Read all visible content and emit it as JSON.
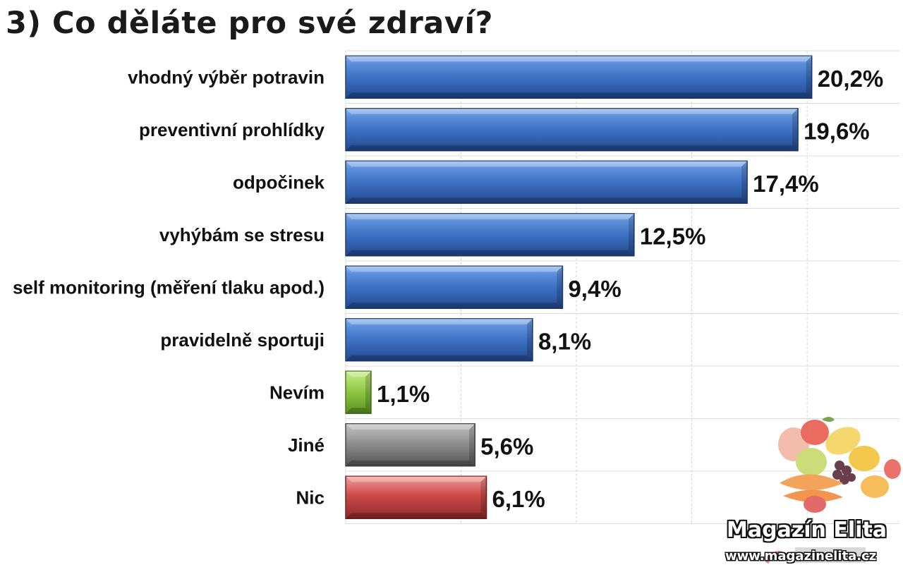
{
  "chart_data": {
    "type": "bar",
    "orientation": "horizontal",
    "title": "3) Co děláte pro své zdraví?",
    "categories": [
      "vhodný výběr potravin",
      "preventivní prohlídky",
      "odpočinek",
      "vyhýbám se stresu",
      "self monitoring (měření tlaku apod.)",
      "pravidelně sportuji",
      "Nevím",
      "Jiné",
      "Nic"
    ],
    "values": [
      20.2,
      19.6,
      17.4,
      12.5,
      9.4,
      8.1,
      1.1,
      5.6,
      6.1
    ],
    "value_labels": [
      "20,2%",
      "19,6%",
      "17,4%",
      "12,5%",
      "9,4%",
      "8,1%",
      "1,1%",
      "5,6%",
      "6,1%"
    ],
    "bar_colors": [
      "#3f72c4",
      "#3f72c4",
      "#3f72c4",
      "#3f72c4",
      "#3f72c4",
      "#3f72c4",
      "#8cc63f",
      "#8a8a8a",
      "#cc4a4a"
    ],
    "xlim": [
      0,
      24
    ],
    "grid": true,
    "legend": "none"
  },
  "watermark": {
    "title": "Magazín Elita",
    "url": "www.magazinelita.cz"
  },
  "decoration": {
    "image": "fruit-vegetables-icon",
    "logo": "source-logo-icon"
  }
}
